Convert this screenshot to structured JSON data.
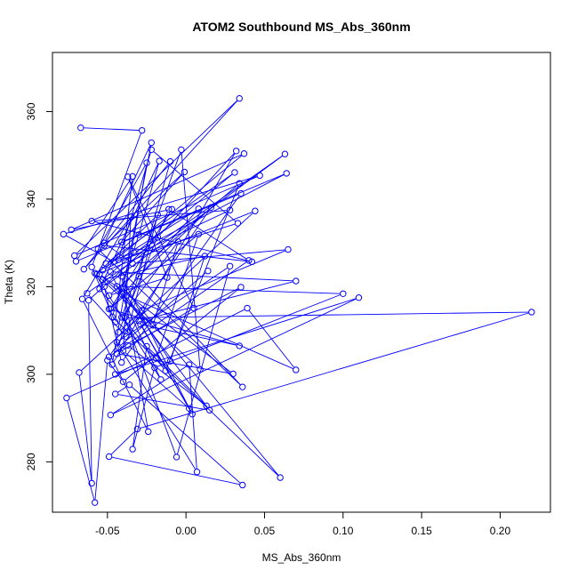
{
  "chart_data": {
    "type": "scatter",
    "title": "ATOM2 Southbound MS_Abs_360nm",
    "xlabel": "MS_Abs_360nm",
    "ylabel": "Theta (K)",
    "xlim": [
      -0.085,
      0.232
    ],
    "ylim": [
      268.5,
      373.5
    ],
    "xticks": [
      "-0.05",
      "0.00",
      "0.05",
      "0.10",
      "0.15",
      "0.20"
    ],
    "yticks": [
      "280",
      "300",
      "320",
      "340",
      "360"
    ],
    "grid": false,
    "series": [
      {
        "color": "#0000ff",
        "marker": "open-circle",
        "connected": true,
        "points": [
          [
            -0.067,
            356.3
          ],
          [
            -0.028,
            355.7
          ],
          [
            -0.06,
            324.5
          ],
          [
            -0.045,
            311.9
          ],
          [
            -0.034,
            345.2
          ],
          [
            -0.07,
            325.8
          ],
          [
            0.035,
            341.3
          ],
          [
            -0.041,
            302.7
          ],
          [
            -0.052,
            320.0
          ],
          [
            0.063,
            350.3
          ],
          [
            -0.063,
            318.5
          ],
          [
            -0.038,
            308.6
          ],
          [
            -0.018,
            336.4
          ],
          [
            -0.057,
            322.8
          ],
          [
            0.044,
            337.3
          ],
          [
            -0.068,
            300.4
          ],
          [
            -0.06,
            275.1
          ],
          [
            -0.062,
            316.9
          ],
          [
            -0.018,
            331.3
          ],
          [
            0.032,
            351.0
          ],
          [
            -0.047,
            302.2
          ],
          [
            -0.025,
            348.3
          ],
          [
            -0.056,
            328.6
          ],
          [
            0.036,
            297.1
          ],
          [
            -0.03,
            322.4
          ],
          [
            0.016,
            338.1
          ],
          [
            -0.049,
            304.0
          ],
          [
            0.04,
            326.0
          ],
          [
            -0.011,
            337.7
          ],
          [
            -0.043,
            309.6
          ],
          [
            -0.028,
            314.6
          ],
          [
            0.065,
            328.5
          ],
          [
            -0.034,
            325.3
          ],
          [
            -0.052,
            330.0
          ],
          [
            -0.022,
            352.9
          ],
          [
            -0.04,
            319.9
          ],
          [
            0.06,
            276.4
          ],
          [
            -0.047,
            313.1
          ],
          [
            -0.03,
            331.9
          ],
          [
            -0.017,
            348.7
          ],
          [
            -0.055,
            319.5
          ],
          [
            -0.013,
            300.8
          ],
          [
            0.034,
            343.6
          ],
          [
            -0.049,
            318.0
          ],
          [
            -0.012,
            322.1
          ],
          [
            -0.037,
            345.1
          ],
          [
            0.005,
            315.1
          ],
          [
            -0.044,
            304.7
          ],
          [
            0.03,
            300.1
          ],
          [
            -0.055,
            322.9
          ],
          [
            -0.021,
            311.2
          ],
          [
            -0.005,
            330.3
          ],
          [
            -0.041,
            313.0
          ],
          [
            -0.003,
            351.3
          ],
          [
            0.009,
            301.1
          ],
          [
            -0.058,
            323.1
          ],
          [
            -0.016,
            298.8
          ],
          [
            -0.048,
            323.4
          ],
          [
            0.07,
            321.3
          ],
          [
            -0.03,
            312.2
          ],
          [
            0.002,
            292.2
          ],
          [
            -0.04,
            305.4
          ],
          [
            -0.035,
            336.0
          ],
          [
            -0.066,
            317.2
          ],
          [
            -0.024,
            286.9
          ],
          [
            -0.041,
            322.4
          ],
          [
            0.004,
            290.9
          ],
          [
            -0.029,
            311.4
          ],
          [
            0.034,
            306.5
          ],
          [
            -0.049,
            314.9
          ],
          [
            0.008,
            332.0
          ],
          [
            -0.019,
            303.7
          ],
          [
            -0.076,
            294.6
          ],
          [
            -0.058,
            270.7
          ],
          [
            -0.05,
            303.2
          ],
          [
            -0.04,
            298.3
          ],
          [
            0.035,
            319.9
          ],
          [
            -0.037,
            306.6
          ],
          [
            0.013,
            292.8
          ],
          [
            -0.025,
            306.4
          ],
          [
            -0.034,
            282.9
          ],
          [
            -0.02,
            301.5
          ],
          [
            0.1,
            318.4
          ],
          [
            -0.044,
            320.1
          ],
          [
            0.015,
            291.8
          ],
          [
            -0.045,
            295.5
          ],
          [
            -0.036,
            297.6
          ],
          [
            0.036,
            274.7
          ],
          [
            -0.049,
            281.2
          ],
          [
            -0.031,
            287.5
          ],
          [
            0.22,
            314.2
          ],
          [
            -0.039,
            312.9
          ],
          [
            -0.006,
            281.1
          ],
          [
            0.028,
            324.7
          ],
          [
            -0.044,
            307.3
          ],
          [
            0.007,
            277.7
          ],
          [
            0.002,
            302.2
          ],
          [
            -0.048,
            290.7
          ],
          [
            0.11,
            317.5
          ],
          [
            -0.045,
            300.0
          ],
          [
            0.039,
            315.1
          ],
          [
            0.07,
            301.0
          ],
          [
            -0.038,
            318.0
          ],
          [
            -0.01,
            303.0
          ],
          [
            0.012,
            327.0
          ],
          [
            -0.053,
            321.6
          ],
          [
            0.031,
            346.1
          ],
          [
            -0.051,
            325.3
          ],
          [
            -0.033,
            327.8
          ],
          [
            0.064,
            345.9
          ],
          [
            -0.041,
            330.2
          ],
          [
            -0.001,
            346.2
          ],
          [
            -0.052,
            329.4
          ],
          [
            0.042,
            325.7
          ],
          [
            -0.06,
            335.0
          ],
          [
            0.028,
            337.5
          ],
          [
            -0.053,
            323.8
          ],
          [
            0.037,
            350.4
          ],
          [
            -0.073,
            333.0
          ],
          [
            -0.009,
            337.7
          ],
          [
            -0.048,
            315.0
          ],
          [
            0.008,
            337.8
          ],
          [
            -0.043,
            326.2
          ],
          [
            -0.022,
            351.3
          ],
          [
            0.033,
            334.5
          ],
          [
            -0.046,
            325.7
          ],
          [
            -0.078,
            332.0
          ],
          [
            0.047,
            345.4
          ],
          [
            -0.071,
            327.1
          ],
          [
            0.034,
            363.0
          ],
          [
            -0.065,
            324.0
          ],
          [
            -0.01,
            348.6
          ],
          [
            -0.043,
            306.2
          ],
          [
            0.014,
            323.6
          ]
        ]
      }
    ]
  }
}
